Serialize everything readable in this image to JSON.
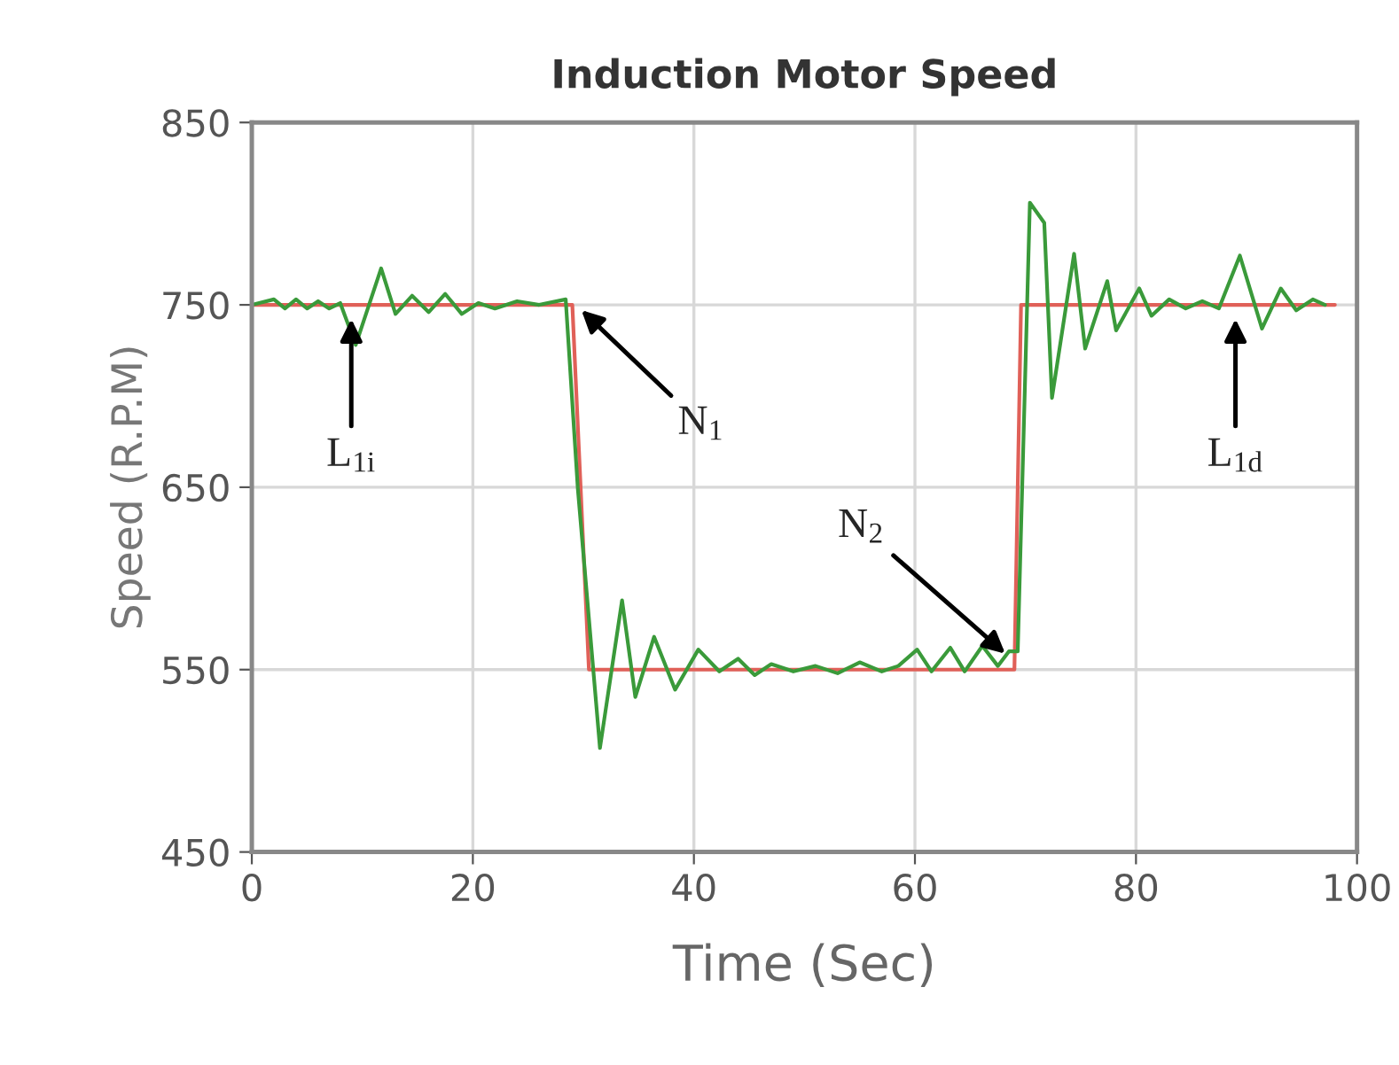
{
  "chart_data": {
    "type": "line",
    "title": "Induction Motor Speed",
    "xlabel": "Time (Sec)",
    "ylabel": "Speed (R.P.M)",
    "xlim": [
      0,
      100
    ],
    "ylim": [
      450,
      850
    ],
    "xticks": [
      0,
      20,
      40,
      60,
      80,
      100
    ],
    "yticks": [
      450,
      550,
      650,
      750,
      850
    ],
    "grid": true,
    "series": [
      {
        "color": "#e06058",
        "x": [
          0,
          29,
          30.5,
          69,
          69.6,
          98
        ],
        "values": [
          750,
          750,
          550,
          550,
          750,
          750
        ]
      },
      {
        "color": "#3a9a3a",
        "x": [
          0,
          2,
          3,
          4,
          5,
          6,
          7,
          8,
          9.4,
          11.7,
          13,
          14.5,
          16,
          17.5,
          19,
          20.5,
          22,
          24,
          26,
          28.4,
          29.5,
          31.5,
          33.5,
          34.7,
          36.4,
          38.3,
          40.4,
          42.3,
          44,
          45.5,
          47,
          49,
          51,
          53,
          55,
          57,
          58.5,
          60.2,
          61.5,
          63.2,
          64.5,
          66.1,
          67.5,
          68.5,
          69.3,
          70.4,
          71.7,
          72.4,
          74.4,
          75.4,
          77.4,
          78.2,
          80.3,
          81.4,
          83,
          84.5,
          86,
          87.5,
          89.4,
          91.4,
          93.1,
          94.5,
          96,
          97.1
        ],
        "values": [
          750,
          753,
          748,
          753,
          748,
          752,
          748,
          751,
          728,
          770,
          745,
          755,
          746,
          756,
          745,
          751,
          748,
          752,
          750,
          753,
          649,
          507,
          588,
          535,
          568,
          539,
          561,
          549,
          556,
          547,
          553,
          549,
          552,
          548,
          554,
          549,
          552,
          561,
          549,
          562,
          549,
          563,
          552,
          560,
          560,
          806,
          795,
          699,
          778,
          726,
          763,
          736,
          759,
          744,
          753,
          748,
          752,
          748,
          777,
          737,
          759,
          747,
          753,
          750
        ]
      }
    ],
    "annotations": [
      {
        "text": "L$_{1i}$",
        "x": 9,
        "y": 745
      },
      {
        "text": "N$_{1}$",
        "x": 29.5,
        "y": 749
      },
      {
        "text": "N$_{2}$",
        "x": 68.5,
        "y": 557
      },
      {
        "text": "L$_{1d}$",
        "x": 89,
        "y": 745
      }
    ]
  }
}
